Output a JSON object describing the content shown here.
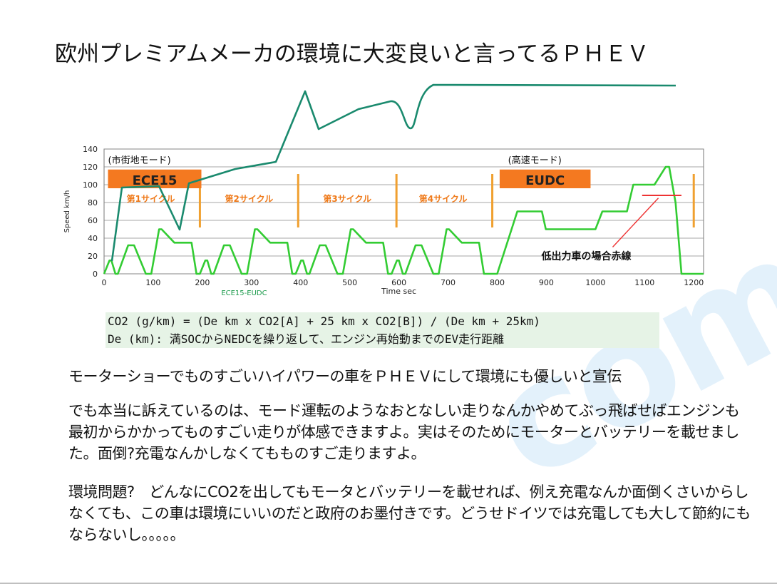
{
  "slide": {
    "title": "欧州プレミアムメーカの環境に大変良いと言ってるＰＨＥＶ",
    "formula_line1": "CO2 (g/km) = (De km x CO2[A] + 25 km x CO2[B]) / (De km + 25km)",
    "formula_line2": "De (km): 満SOCからNEDCを繰り返して、エンジン再始動までのEV走行距離",
    "paragraph1": "モーターショーでものすごいハイパワーの車をＰＨＥＶにして環境にも優しいと宣伝",
    "paragraph2": "でも本当に訴えているのは、モード運転のようなおとなしい走りなんかやめてぶっ飛ばせばエンジンも最初からかかってものすごい走りが体感できますよ。実はそのためにモーターとバッテリーを載せました。面倒?充電なんかしなくてもものすご走りますよ。",
    "paragraph3": "環境問題?　どんなにCO2を出してもモータとバッテリーを載せれば、例え充電なんか面倒くさいからしなくても、この車は環境にいいのだと政府のお墨付きです。どうせドイツでは充電しても大して節約にもならないし。。。。。",
    "colors": {
      "speed_line": "#33cc33",
      "annotation_line": "#1a8a6e",
      "red_line": "#ee3333",
      "cycle_divider": "#f0a030",
      "label_box": "#f47920"
    }
  },
  "chart_data": {
    "type": "line",
    "ylabel": "Speed km/h",
    "xlabel": "Time sec",
    "sublabel": "ECE15-EUDC",
    "xlim": [
      0,
      1220
    ],
    "ylim": [
      0,
      140
    ],
    "xticks": [
      0,
      100,
      200,
      300,
      400,
      500,
      600,
      700,
      800,
      900,
      1000,
      1100,
      1200
    ],
    "yticks": [
      0,
      20,
      40,
      60,
      80,
      100,
      120,
      140
    ],
    "grid": true,
    "region_labels": [
      "(市街地モード)",
      "(高速モード)"
    ],
    "boxes": [
      "ECE15",
      "EUDC"
    ],
    "cycle_labels": [
      "第1サイクル",
      "第2サイクル",
      "第3サイクル",
      "第4サイクル"
    ],
    "cycle_dividers_x": [
      195,
      395,
      595,
      790,
      1200
    ],
    "red_annotation": "低出力車の場合赤線",
    "series": [
      {
        "name": "ECE15-EUDC",
        "x": [
          0,
          11,
          15,
          23,
          28,
          49,
          61,
          85,
          96,
          112,
          117,
          143,
          155,
          163,
          176,
          178,
          188,
          195,
          195,
          206,
          210,
          218,
          223,
          244,
          256,
          280,
          291,
          307,
          312,
          338,
          350,
          358,
          371,
          373,
          383,
          390,
          390,
          401,
          405,
          413,
          418,
          439,
          451,
          475,
          486,
          502,
          507,
          533,
          545,
          553,
          566,
          568,
          578,
          585,
          585,
          596,
          600,
          608,
          613,
          634,
          646,
          670,
          681,
          697,
          702,
          728,
          740,
          748,
          761,
          763,
          773,
          780,
          800,
          841,
          891,
          899,
          907,
          1000,
          1014,
          1064,
          1077,
          1120,
          1143,
          1150,
          1163,
          1175,
          1200,
          1220
        ],
        "y": [
          0,
          15,
          15,
          0,
          0,
          32,
          32,
          0,
          0,
          50,
          50,
          35,
          35,
          35,
          35,
          35,
          0,
          0,
          0,
          15,
          15,
          0,
          0,
          32,
          32,
          0,
          0,
          50,
          50,
          35,
          35,
          35,
          35,
          35,
          0,
          0,
          0,
          15,
          15,
          0,
          0,
          32,
          32,
          0,
          0,
          50,
          50,
          35,
          35,
          35,
          35,
          35,
          0,
          0,
          0,
          15,
          15,
          0,
          0,
          32,
          32,
          0,
          0,
          50,
          50,
          35,
          35,
          35,
          35,
          35,
          0,
          0,
          0,
          70,
          70,
          50,
          50,
          50,
          70,
          70,
          100,
          100,
          120,
          120,
          80,
          0,
          0,
          0
        ]
      }
    ]
  }
}
